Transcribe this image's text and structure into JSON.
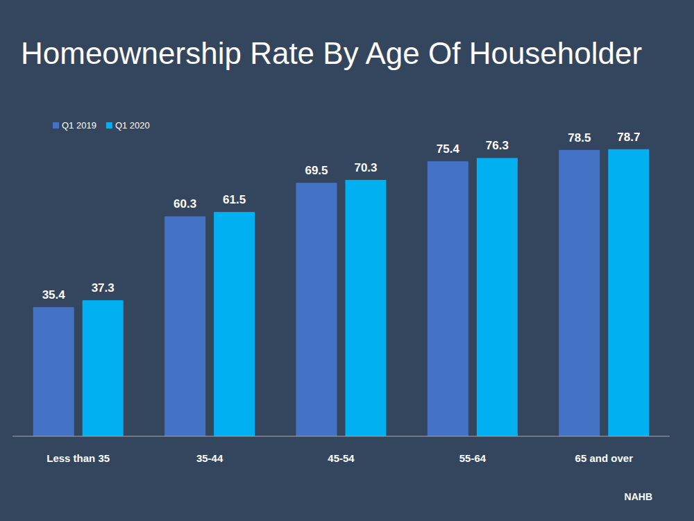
{
  "chart_data": {
    "type": "bar",
    "title": "Homeownership Rate By Age Of Householder",
    "categories": [
      "Less than 35",
      "35-44",
      "45-54",
      "55-64",
      "65 and over"
    ],
    "series": [
      {
        "name": "Q1 2019",
        "color": "#4472c4",
        "values": [
          35.4,
          60.3,
          69.5,
          75.4,
          78.5
        ]
      },
      {
        "name": "Q1 2020",
        "color": "#00b0f0",
        "values": [
          37.3,
          61.5,
          70.3,
          76.3,
          78.7
        ]
      }
    ],
    "ylim": [
      0,
      100
    ],
    "data_labels": true,
    "tick_labels": "x",
    "grid": false,
    "legend": "top-left",
    "source": "NAHB"
  }
}
